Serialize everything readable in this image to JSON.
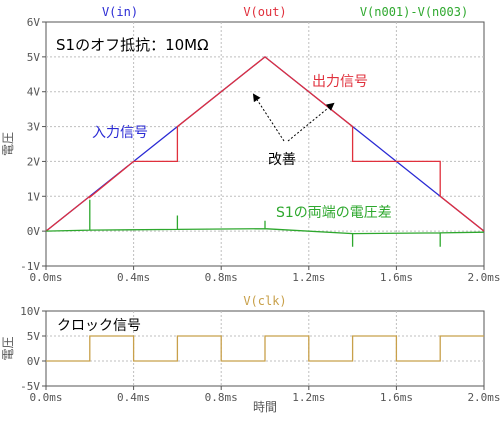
{
  "chart_data": [
    {
      "type": "line",
      "trace_headers": [
        {
          "name": "V(in)",
          "color": "#2a2ad4"
        },
        {
          "name": "V(out)",
          "color": "#e0303c"
        },
        {
          "name": "V(n001)-V(n003)",
          "color": "#2ea82e"
        }
      ],
      "ylabel": "電圧",
      "xlabel": "",
      "xlim": [
        0,
        2.0
      ],
      "ylim": [
        -1,
        6
      ],
      "x_ticks": [
        "0.0ms",
        "0.4ms",
        "0.8ms",
        "1.2ms",
        "1.6ms",
        "2.0ms"
      ],
      "y_ticks": [
        "-1V",
        "0V",
        "1V",
        "2V",
        "3V",
        "4V",
        "5V",
        "6V"
      ],
      "series": [
        {
          "name": "V(in)",
          "color": "#2a2ad4",
          "x": [
            0,
            1.0,
            2.0
          ],
          "y": [
            0,
            5,
            0
          ]
        },
        {
          "name": "V(out)",
          "color": "#e0303c",
          "x": [
            0,
            0.2,
            0.2,
            0.4,
            0.6,
            0.6,
            0.8,
            1.0,
            1.4,
            1.4,
            1.8,
            1.8,
            2.0
          ],
          "y": [
            0,
            1,
            0.97,
            2,
            2,
            3,
            4,
            5,
            3,
            2,
            2,
            1,
            0
          ]
        },
        {
          "name": "V(n001)-V(n003)",
          "color": "#2ea82e",
          "x": [
            0,
            0.2,
            0.2,
            0.2,
            0.6,
            0.6,
            0.6,
            1.0,
            1.0,
            1.0,
            1.4,
            1.4,
            1.4,
            1.8,
            1.8,
            1.8,
            2.0
          ],
          "y": [
            0,
            0.03,
            0.9,
            0.03,
            0.05,
            0.45,
            0.05,
            0.07,
            0.3,
            0.07,
            -0.07,
            -0.45,
            -0.07,
            -0.05,
            -0.45,
            -0.05,
            -0.03
          ]
        }
      ],
      "annotations": {
        "title_text": "S1のオフ抵抗：10MΩ",
        "input_label": "入力信号",
        "output_label": "出力信号",
        "improve_label": "改善",
        "diff_label": "S1の両端の電圧差"
      }
    },
    {
      "type": "line",
      "trace_headers": [
        {
          "name": "V(clk)",
          "color": "#c8a04a"
        }
      ],
      "ylabel": "電圧",
      "xlabel": "時間",
      "xlim": [
        0,
        2.0
      ],
      "ylim": [
        -5,
        10
      ],
      "x_ticks": [
        "0.0ms",
        "0.4ms",
        "0.8ms",
        "1.2ms",
        "1.6ms",
        "2.0ms"
      ],
      "y_ticks": [
        "-5V",
        "0V",
        "5V",
        "10V"
      ],
      "series": [
        {
          "name": "V(clk)",
          "color": "#c8a04a",
          "x": [
            0,
            0.2,
            0.2,
            0.4,
            0.4,
            0.6,
            0.6,
            0.8,
            0.8,
            1.0,
            1.0,
            1.2,
            1.2,
            1.4,
            1.4,
            1.6,
            1.6,
            1.8,
            1.8,
            2.0
          ],
          "y": [
            0,
            0,
            5,
            5,
            0,
            0,
            5,
            5,
            0,
            0,
            5,
            5,
            0,
            0,
            5,
            5,
            0,
            0,
            5,
            5
          ]
        }
      ],
      "annotations": {
        "clock_label": "クロック信号"
      }
    }
  ]
}
